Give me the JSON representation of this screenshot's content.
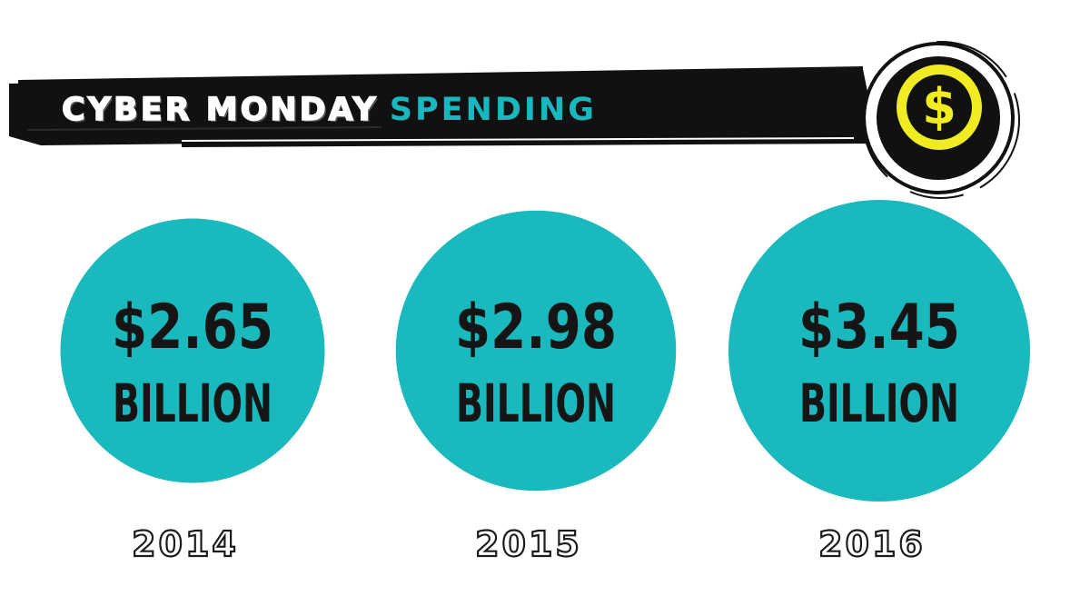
{
  "header": {
    "title_part_1": "CYBER MONDAY",
    "title_part_2": "SPENDING",
    "icon": "dollar-coin-icon"
  },
  "colors": {
    "bubble": "#19b9be",
    "banner": "#111111",
    "accent_text": "#1ab7bf",
    "coin": "#f1ec21"
  },
  "chart_data": {
    "type": "bubble",
    "title": "CYBER MONDAY SPENDING",
    "unit": "BILLION",
    "categories": [
      "2014",
      "2015",
      "2016"
    ],
    "values": [
      2.65,
      2.98,
      3.45
    ],
    "labels": [
      "$2.65",
      "$2.98",
      "$3.45"
    ]
  }
}
